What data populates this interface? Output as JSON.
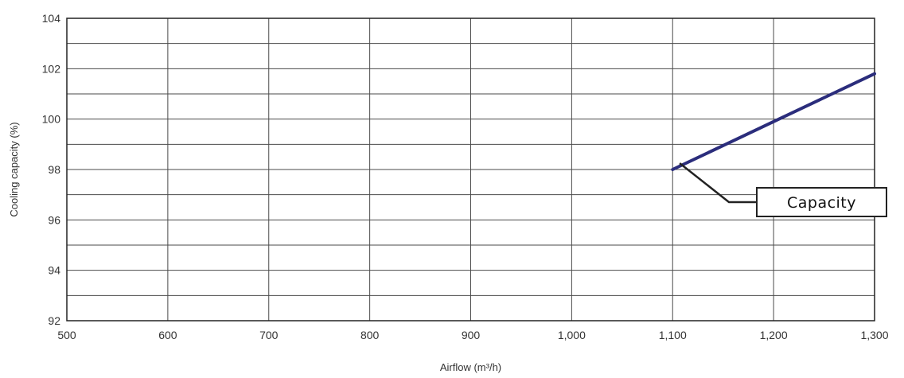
{
  "chart_data": {
    "type": "line",
    "title": "",
    "xlabel": "Airflow (m³/h)",
    "ylabel": "Cooling capacity (%)",
    "xlim": [
      500,
      1300
    ],
    "ylim": [
      92,
      104
    ],
    "x_ticks": [
      500,
      600,
      700,
      800,
      900,
      1000,
      1100,
      1200,
      1300
    ],
    "x_tick_labels": [
      "500",
      "600",
      "700",
      "800",
      "900",
      "1,000",
      "1,100",
      "1,200",
      "1,300"
    ],
    "y_ticks": [
      92,
      94,
      96,
      98,
      100,
      102,
      104
    ],
    "y_tick_labels": [
      "92",
      "94",
      "96",
      "98",
      "100",
      "102",
      "104"
    ],
    "grid": true,
    "series": [
      {
        "name": "Capacity",
        "color": "#2b2d7c",
        "x": [
          1100,
          1150,
          1200,
          1250,
          1300
        ],
        "y": [
          98.0,
          98.95,
          99.9,
          100.85,
          101.8
        ]
      }
    ],
    "annotation": {
      "text": "Capacity",
      "points_to": [
        1107,
        98.25
      ]
    }
  }
}
